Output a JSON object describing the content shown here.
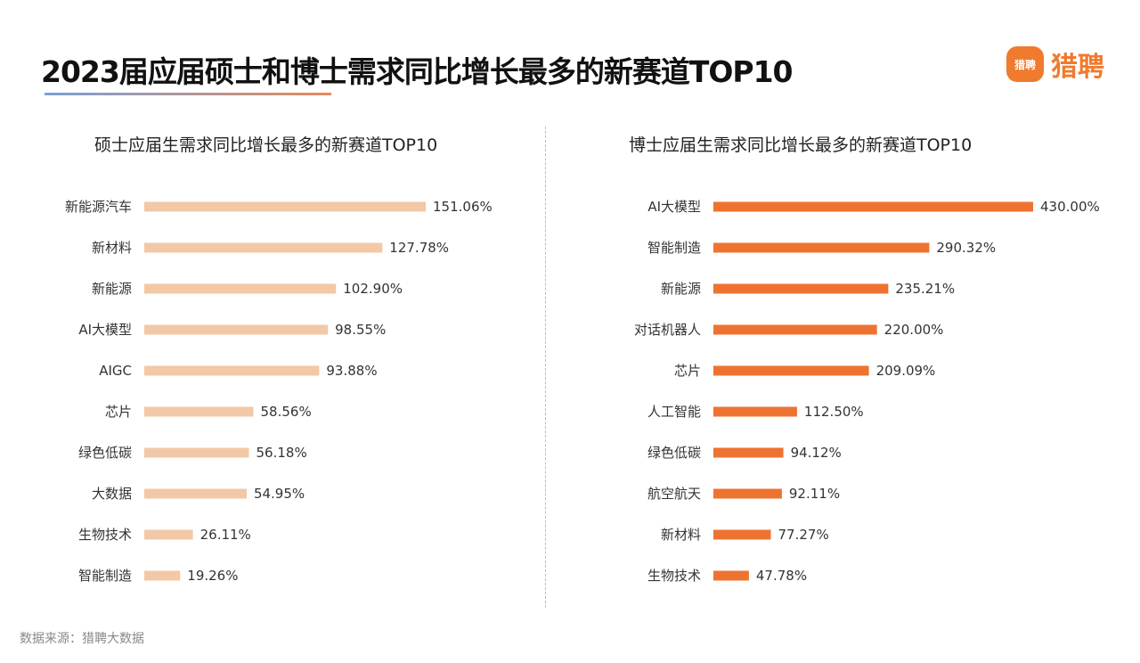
{
  "title": "2023届应届硕士和博士需求同比增长最多的新赛道TOP10",
  "logo": {
    "mark": "猎聘",
    "text": "猎聘"
  },
  "source": "数据来源：猎聘大数据",
  "chart_data": [
    {
      "type": "bar",
      "orientation": "horizontal",
      "title": "硕士应届生需求同比增长最多的新赛道TOP10",
      "categories": [
        "新能源汽车",
        "新材料",
        "新能源",
        "AI大模型",
        "AIGC",
        "芯片",
        "绿色低碳",
        "大数据",
        "生物技术",
        "智能制造"
      ],
      "values": [
        151.06,
        127.78,
        102.9,
        98.55,
        93.88,
        58.56,
        56.18,
        54.95,
        26.11,
        19.26
      ],
      "labels": [
        "151.06%",
        "127.78%",
        "102.90%",
        "98.55%",
        "93.88%",
        "58.56%",
        "56.18%",
        "54.95%",
        "26.11%",
        "19.26%"
      ],
      "unit": "%",
      "color": "#f2c8a6",
      "grid": false
    },
    {
      "type": "bar",
      "orientation": "horizontal",
      "title": "博士应届生需求同比增长最多的新赛道TOP10",
      "categories": [
        "AI大模型",
        "智能制造",
        "新能源",
        "对话机器人",
        "芯片",
        "人工智能",
        "绿色低碳",
        "航空航天",
        "新材料",
        "生物技术"
      ],
      "values": [
        430.0,
        290.32,
        235.21,
        220.0,
        209.09,
        112.5,
        94.12,
        92.11,
        77.27,
        47.78
      ],
      "labels": [
        "430.00%",
        "290.32%",
        "235.21%",
        "220.00%",
        "209.09%",
        "112.50%",
        "94.12%",
        "92.11%",
        "77.27%",
        "47.78%"
      ],
      "unit": "%",
      "color": "#ee7330",
      "grid": false
    }
  ]
}
